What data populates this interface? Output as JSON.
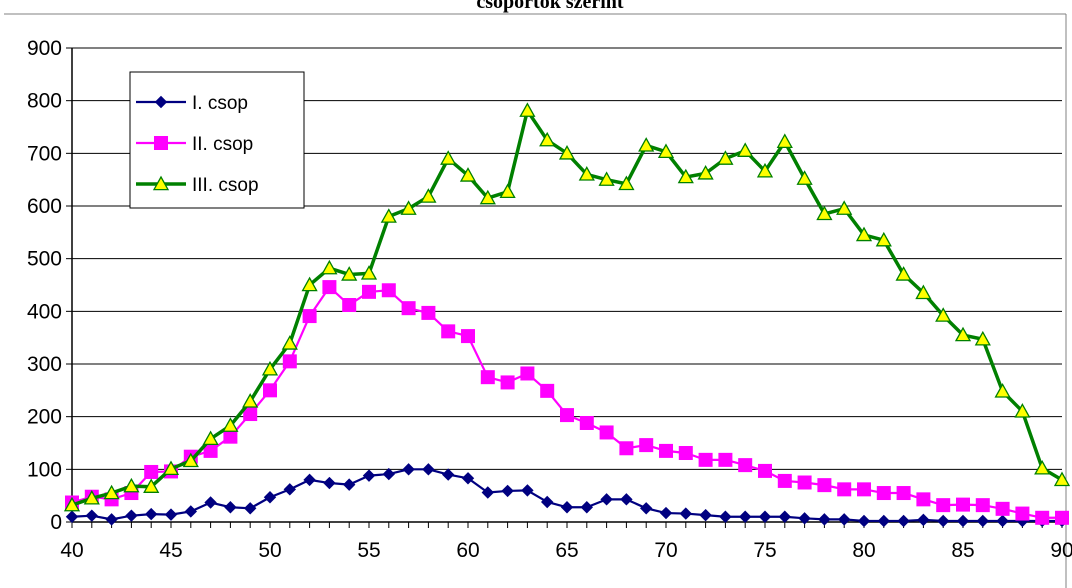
{
  "chart_data": {
    "type": "line",
    "title": "csoportok szerint",
    "xlabel": "",
    "ylabel": "",
    "xlim": [
      40,
      90
    ],
    "ylim": [
      0,
      900
    ],
    "x_ticks": [
      40,
      45,
      50,
      55,
      60,
      65,
      70,
      75,
      80,
      85,
      90
    ],
    "y_ticks": [
      0,
      100,
      200,
      300,
      400,
      500,
      600,
      700,
      800,
      900
    ],
    "grid": "horizontal",
    "legend_position": "top-left",
    "x": [
      40,
      41,
      42,
      43,
      44,
      45,
      46,
      47,
      48,
      49,
      50,
      51,
      52,
      53,
      54,
      55,
      56,
      57,
      58,
      59,
      60,
      61,
      62,
      63,
      64,
      65,
      66,
      67,
      68,
      69,
      70,
      71,
      72,
      73,
      74,
      75,
      76,
      77,
      78,
      79,
      80,
      81,
      82,
      83,
      84,
      85,
      86,
      87,
      88,
      89,
      90
    ],
    "series": [
      {
        "name": "I. csop",
        "color": "#000080",
        "marker": "diamond",
        "values": [
          10,
          12,
          5,
          12,
          15,
          14,
          20,
          37,
          28,
          26,
          47,
          62,
          80,
          74,
          71,
          88,
          91,
          100,
          100,
          90,
          83,
          56,
          59,
          60,
          38,
          28,
          28,
          43,
          43,
          26,
          17,
          16,
          13,
          10,
          10,
          10,
          10,
          7,
          5,
          5,
          2,
          2,
          2,
          4,
          2,
          2,
          2,
          2,
          2,
          2,
          2
        ]
      },
      {
        "name": "II. csop",
        "color": "#FF00FF",
        "marker": "square",
        "values": [
          37,
          48,
          43,
          55,
          95,
          96,
          124,
          135,
          162,
          205,
          250,
          305,
          391,
          446,
          412,
          437,
          440,
          406,
          397,
          362,
          353,
          275,
          265,
          282,
          249,
          203,
          188,
          170,
          140,
          146,
          135,
          131,
          118,
          118,
          108,
          97,
          78,
          75,
          70,
          62,
          62,
          55,
          55,
          43,
          32,
          33,
          32,
          25,
          16,
          8,
          8
        ]
      },
      {
        "name": "III. csop",
        "color": "#008000",
        "marker": "triangle",
        "marker_fill": "#FFFF00",
        "values": [
          32,
          45,
          55,
          68,
          67,
          101,
          116,
          158,
          183,
          229,
          290,
          339,
          450,
          482,
          470,
          472,
          580,
          595,
          618,
          690,
          658,
          615,
          627,
          781,
          725,
          700,
          660,
          650,
          642,
          715,
          703,
          655,
          662,
          690,
          705,
          666,
          722,
          652,
          585,
          595,
          545,
          535,
          470,
          435,
          392,
          355,
          347,
          248,
          210,
          102,
          80
        ]
      }
    ]
  }
}
